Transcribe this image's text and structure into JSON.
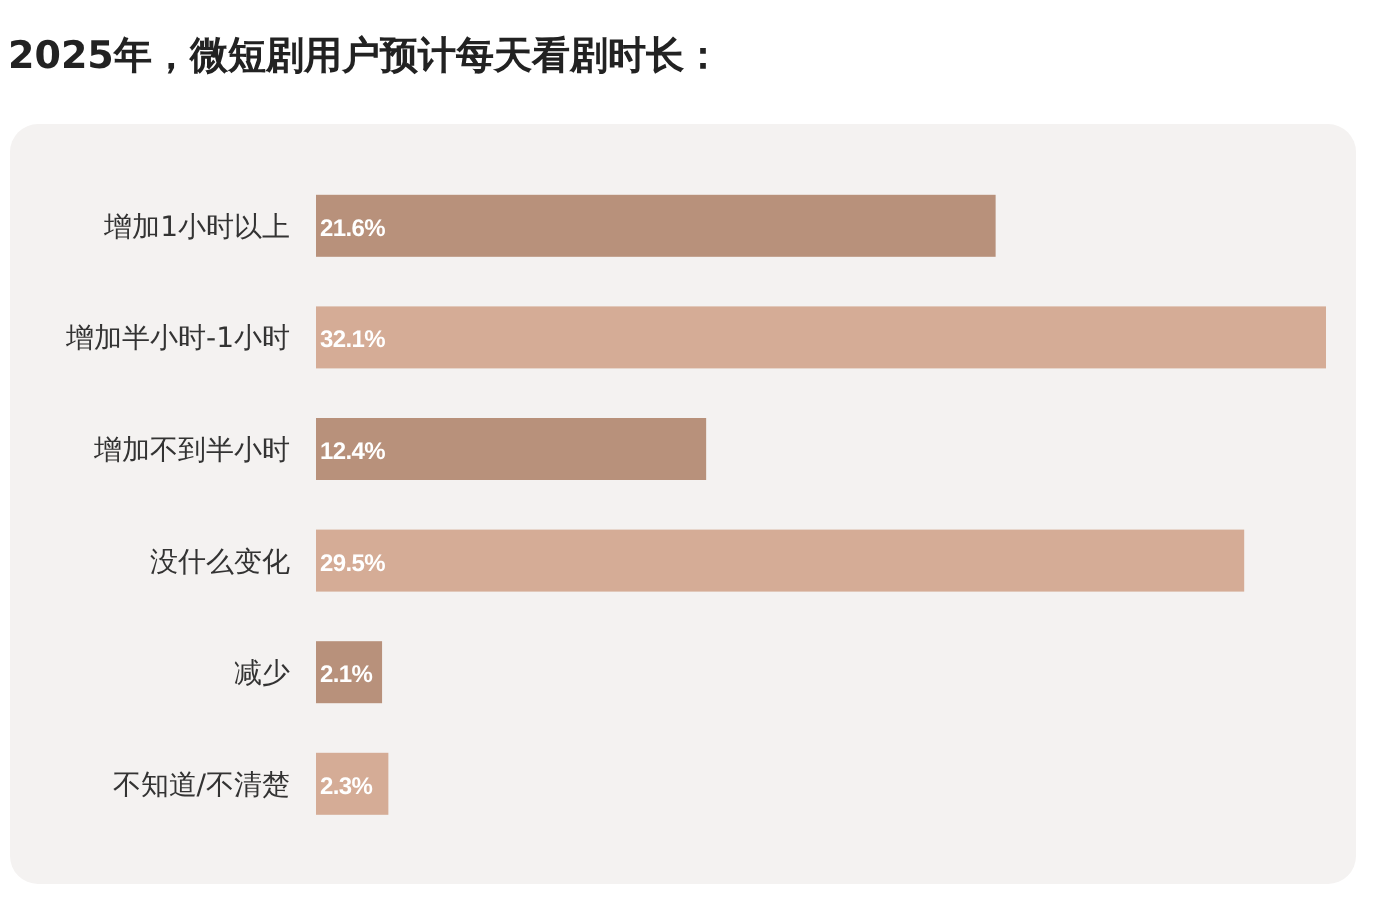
{
  "chart_data": {
    "type": "bar",
    "orientation": "horizontal",
    "title": "2025年，微短剧用户预计每天看剧时长：",
    "categories": [
      "增加1小时以上",
      "增加半小时-1小时",
      "增加不到半小时",
      "没什么变化",
      "减少",
      "不知道/不清楚"
    ],
    "values": [
      21.6,
      32.1,
      12.4,
      29.5,
      2.1,
      2.3
    ],
    "value_labels": [
      "21.6%",
      "32.1%",
      "12.4%",
      "29.5%",
      "2.1%",
      "2.3%"
    ],
    "colors": [
      "#b8917b",
      "#d5ac96",
      "#b8917b",
      "#d5ac96",
      "#b8917b",
      "#d5ac96"
    ],
    "xlim": [
      0,
      32.1
    ]
  }
}
